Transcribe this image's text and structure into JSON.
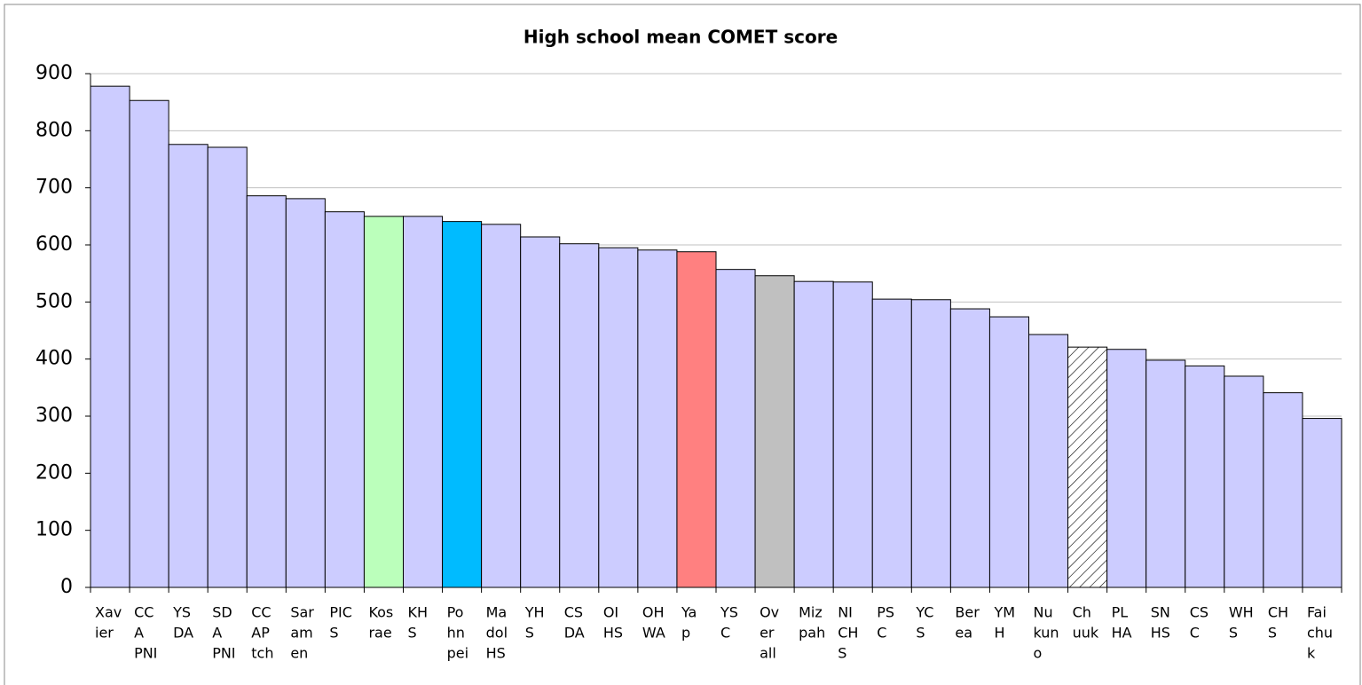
{
  "chart_data": {
    "type": "bar",
    "title": "High school mean COMET score",
    "categories": [
      [
        "Xav",
        "ier"
      ],
      [
        "CC",
        "A",
        "PNI"
      ],
      [
        "YS",
        "DA"
      ],
      [
        "SD",
        "A",
        "PNI"
      ],
      [
        "CC",
        "AP",
        "tch"
      ],
      [
        "Sar",
        "am",
        "en"
      ],
      [
        "PIC",
        "S"
      ],
      [
        "Kos",
        "rae"
      ],
      [
        "KH",
        "S"
      ],
      [
        "Po",
        "hn",
        "pei"
      ],
      [
        "Ma",
        "dol",
        "HS"
      ],
      [
        "YH",
        "S"
      ],
      [
        "CS",
        "DA"
      ],
      [
        "OI",
        "HS"
      ],
      [
        "OH",
        "WA"
      ],
      [
        "Ya",
        "p"
      ],
      [
        "YS",
        "C"
      ],
      [
        "Ov",
        "er",
        "all"
      ],
      [
        "Miz",
        "pah"
      ],
      [
        "NI",
        "CH",
        "S"
      ],
      [
        "PS",
        "C"
      ],
      [
        "YC",
        "S"
      ],
      [
        "Ber",
        "ea"
      ],
      [
        "YM",
        "H"
      ],
      [
        "Nu",
        "kun",
        "o"
      ],
      [
        "Ch",
        "uuk"
      ],
      [
        "PL",
        "HA"
      ],
      [
        "SN",
        "HS"
      ],
      [
        "CS",
        "C"
      ],
      [
        "WH",
        "S"
      ],
      [
        "CH",
        "S"
      ],
      [
        "Fai",
        "chu",
        "k"
      ]
    ],
    "values": [
      878,
      853,
      776,
      771,
      686,
      681,
      658,
      650,
      650,
      641,
      636,
      614,
      602,
      595,
      591,
      588,
      557,
      546,
      536,
      535,
      505,
      504,
      488,
      474,
      443,
      421,
      417,
      398,
      388,
      370,
      341,
      296
    ],
    "colors": [
      "#ccccff",
      "#ccccff",
      "#ccccff",
      "#ccccff",
      "#ccccff",
      "#ccccff",
      "#ccccff",
      "#bbffbb",
      "#ccccff",
      "#00bbff",
      "#ccccff",
      "#ccccff",
      "#ccccff",
      "#ccccff",
      "#ccccff",
      "#ff8080",
      "#ccccff",
      "#c0c0c0",
      "#ccccff",
      "#ccccff",
      "#ccccff",
      "#ccccff",
      "#ccccff",
      "#ccccff",
      "#ccccff",
      "hatch",
      "#ccccff",
      "#ccccff",
      "#ccccff",
      "#ccccff",
      "#ccccff",
      "#ccccff"
    ],
    "ylim": [
      0,
      900
    ],
    "yticks": [
      0,
      100,
      200,
      300,
      400,
      500,
      600,
      700,
      800,
      900
    ],
    "grid": true
  }
}
